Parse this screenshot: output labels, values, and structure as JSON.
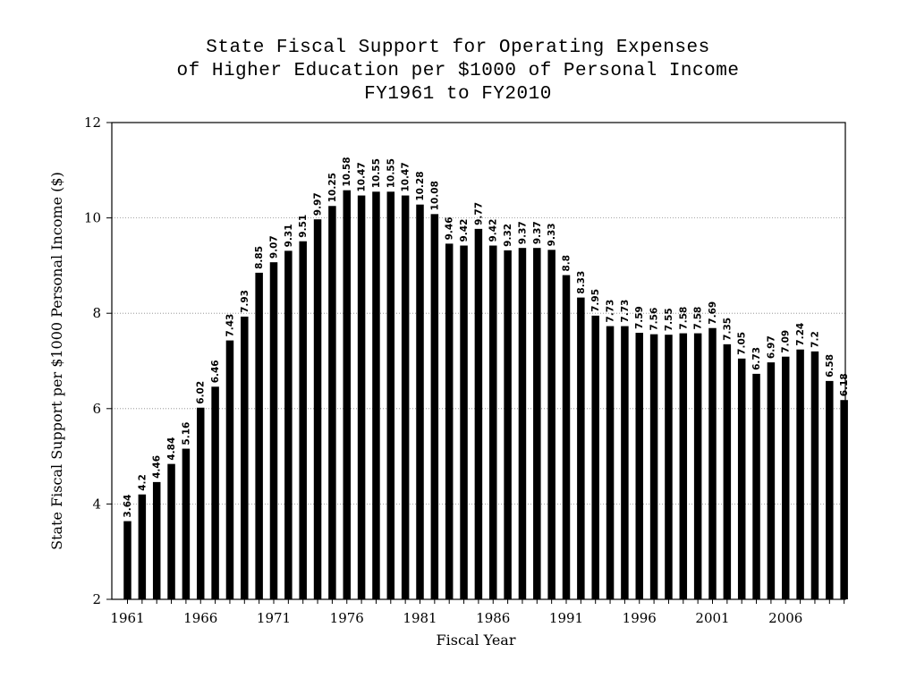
{
  "chart_data": {
    "type": "bar",
    "title": [
      "State Fiscal Support for Operating Expenses",
      "of Higher Education per $1000 of Personal Income",
      "FY1961 to FY2010"
    ],
    "xlabel": "Fiscal Year",
    "ylabel": "State Fiscal Support per $1000 Personal Income ($)",
    "ylim": [
      2,
      12
    ],
    "yticks": [
      "2",
      "4",
      "6",
      "8",
      "10",
      "12"
    ],
    "xtick_labels": [
      "1961",
      "1966",
      "1971",
      "1976",
      "1981",
      "1986",
      "1991",
      "1996",
      "2001",
      "2006"
    ],
    "grid": "horizontal dotted",
    "bar_color": "#000000",
    "categories": [
      "1961",
      "1962",
      "1963",
      "1964",
      "1965",
      "1966",
      "1967",
      "1968",
      "1969",
      "1970",
      "1971",
      "1972",
      "1973",
      "1974",
      "1975",
      "1976",
      "1977",
      "1978",
      "1979",
      "1980",
      "1981",
      "1982",
      "1983",
      "1984",
      "1985",
      "1986",
      "1987",
      "1988",
      "1989",
      "1990",
      "1991",
      "1992",
      "1993",
      "1994",
      "1995",
      "1996",
      "1997",
      "1998",
      "1999",
      "2000",
      "2001",
      "2002",
      "2003",
      "2004",
      "2005",
      "2006",
      "2007",
      "2008",
      "2009",
      "2010"
    ],
    "values": [
      3.64,
      4.2,
      4.46,
      4.84,
      5.16,
      6.02,
      6.46,
      7.43,
      7.93,
      8.85,
      9.07,
      9.31,
      9.51,
      9.97,
      10.25,
      10.58,
      10.47,
      10.55,
      10.55,
      10.47,
      10.28,
      10.08,
      9.46,
      9.42,
      9.77,
      9.42,
      9.32,
      9.37,
      9.37,
      9.33,
      8.8,
      8.33,
      7.95,
      7.73,
      7.73,
      7.59,
      7.56,
      7.55,
      7.58,
      7.58,
      7.69,
      7.35,
      7.05,
      6.73,
      6.97,
      7.09,
      7.24,
      7.2,
      6.58,
      6.18
    ],
    "data_labels": [
      "3.64",
      "4.2",
      "4.46",
      "4.84",
      "5.16",
      "6.02",
      "6.46",
      "7.43",
      "7.93",
      "8.85",
      "9.07",
      "9.31",
      "9.51",
      "9.97",
      "10.25",
      "10.58",
      "10.47",
      "10.55",
      "10.55",
      "10.47",
      "10.28",
      "10.08",
      "9.46",
      "9.42",
      "9.77",
      "9.42",
      "9.32",
      "9.37",
      "9.37",
      "9.33",
      "8.8",
      "8.33",
      "7.95",
      "7.73",
      "7.73",
      "7.59",
      "7.56",
      "7.55",
      "7.58",
      "7.58",
      "7.69",
      "7.35",
      "7.05",
      "6.73",
      "6.97",
      "7.09",
      "7.24",
      "7.2",
      "6.58",
      "6.18"
    ]
  }
}
